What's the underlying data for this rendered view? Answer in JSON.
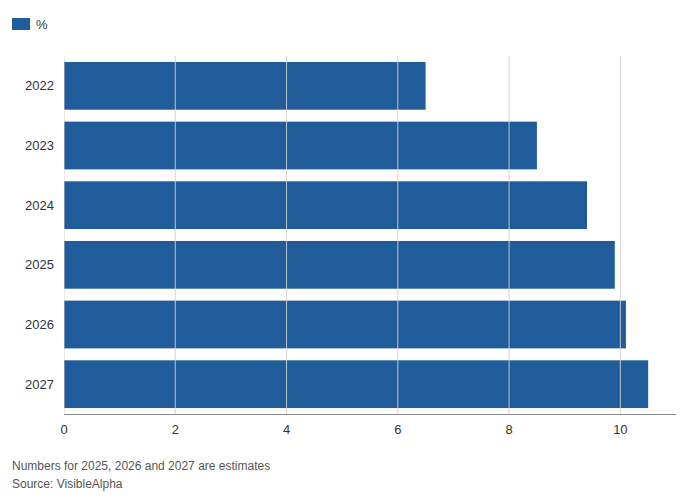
{
  "chart_data": {
    "type": "bar",
    "orientation": "horizontal",
    "categories": [
      "2022",
      "2023",
      "2024",
      "2025",
      "2026",
      "2027"
    ],
    "series": [
      {
        "name": "%",
        "color": "#1f5c99",
        "values": [
          6.5,
          8.5,
          9.4,
          9.9,
          10.1,
          10.5
        ]
      }
    ],
    "xlim": [
      0,
      11
    ],
    "xticks": [
      0,
      2,
      4,
      6,
      8,
      10
    ],
    "grid": true,
    "legend": "top-left",
    "annotations": [
      "Numbers for 2025, 2026 and 2027 are estimates",
      "Source: VisibleAlpha"
    ]
  }
}
